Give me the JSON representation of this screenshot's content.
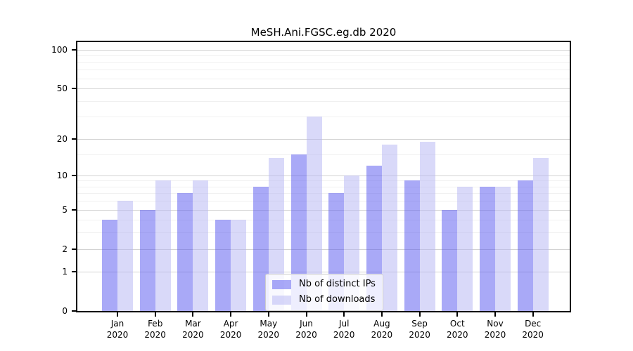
{
  "chart_data": {
    "type": "bar",
    "title": "MeSH.Ani.FGSC.eg.db 2020",
    "year_label": "2020",
    "months": [
      "Jan",
      "Feb",
      "Mar",
      "Apr",
      "May",
      "Jun",
      "Jul",
      "Aug",
      "Sep",
      "Oct",
      "Nov",
      "Dec"
    ],
    "series": [
      {
        "name": "Nb of distinct IPs",
        "color": "#5353ef",
        "alpha": 0.5,
        "rendered_color": "#a9a9f7",
        "values": [
          4,
          5,
          7,
          4,
          8,
          15,
          7,
          12,
          9,
          5,
          8,
          9
        ]
      },
      {
        "name": "Nb of downloads",
        "color": "#b3b3f3",
        "alpha": 0.5,
        "rendered_color": "#d9d9f9",
        "values": [
          6,
          9,
          9,
          4,
          14,
          30,
          10,
          18,
          19,
          8,
          8,
          14
        ]
      }
    ],
    "y_axis": {
      "scale": "log10(value+1)",
      "ticks": [
        0,
        1,
        2,
        5,
        10,
        20,
        50,
        100
      ],
      "minor_gridlines": [
        3,
        4,
        6,
        7,
        8,
        9,
        15,
        30,
        40,
        60,
        70,
        80,
        90
      ],
      "range_top": 115
    },
    "x_axis": {
      "label_line2": "2020"
    },
    "legend": {
      "position": "lower center"
    },
    "grid": true,
    "colors": {
      "background": "#ffffff",
      "axis": "#000000",
      "major_gridline": "#d2d2d2",
      "minor_gridline": "#f0f0f0",
      "legend_border": "#cccccc"
    }
  }
}
